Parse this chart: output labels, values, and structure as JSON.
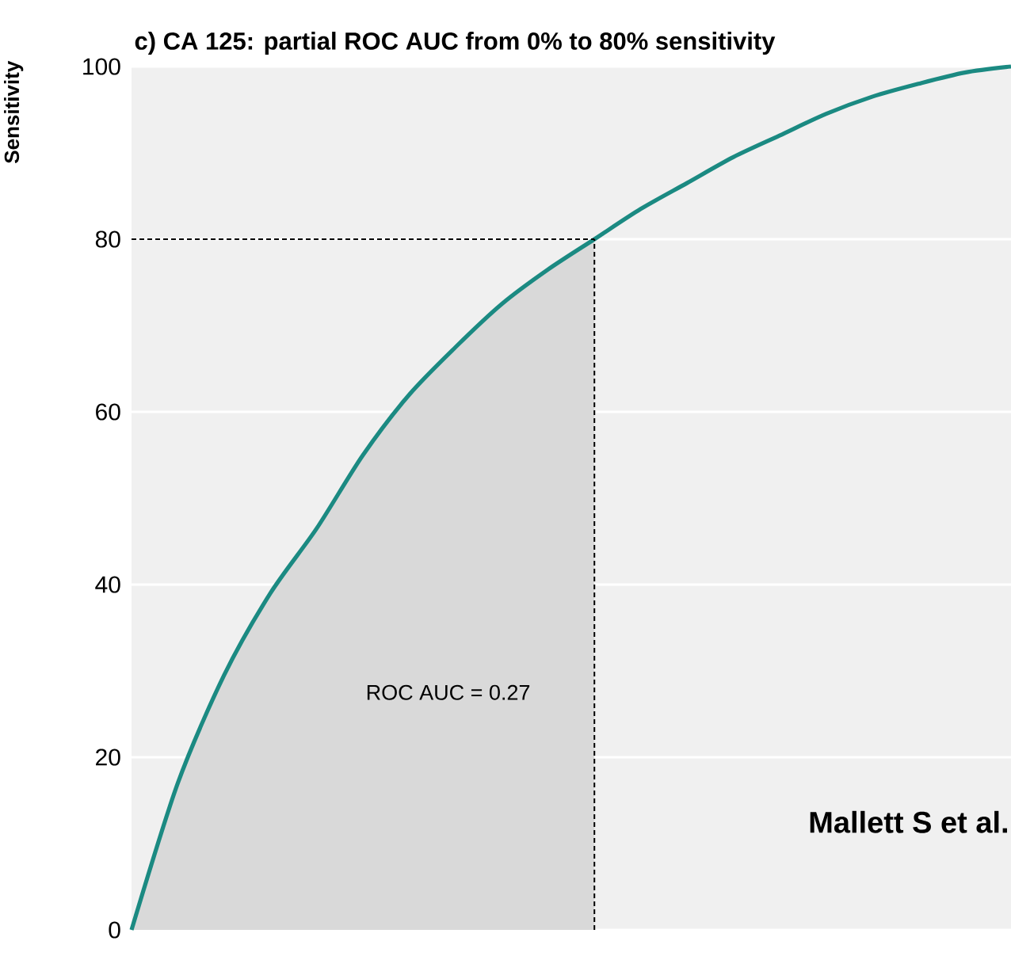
{
  "chart_data": {
    "type": "line",
    "title": "c) CA 125: partial ROC AUC from 0% to 80% sensitivity",
    "ylabel": "Sensitivity",
    "categories": [
      null,
      null,
      null,
      null,
      null,
      null,
      null,
      null,
      null,
      null,
      null,
      null,
      null,
      null,
      null,
      null,
      null,
      null,
      null,
      null
    ],
    "series": [
      {
        "type": "area",
        "color": "#d9d9d9",
        "values": [
          0,
          17,
          29.5,
          39,
          46.5,
          55,
          62,
          67.5,
          72.5,
          76.5,
          80,
          null,
          null,
          null,
          null,
          null,
          null,
          null,
          null,
          null
        ]
      },
      {
        "color": "#1b8a82",
        "values": [
          0,
          17,
          29.5,
          39,
          46.5,
          55,
          62,
          67.5,
          72.5,
          76.5,
          80,
          83.5,
          86.5,
          89.5,
          92,
          94.5,
          96.5,
          98,
          99.3,
          100
        ]
      }
    ],
    "ylim": [
      0,
      100
    ],
    "yticks": [
      0,
      20,
      40,
      60,
      80,
      100
    ],
    "grid": "y",
    "ref_lines": [
      {
        "axis": "y",
        "value": 80,
        "color": "#000000",
        "line_style": "dashed"
      }
    ],
    "annotations": [
      "ROC AUC = 0.27",
      "Mallett S et al."
    ]
  }
}
